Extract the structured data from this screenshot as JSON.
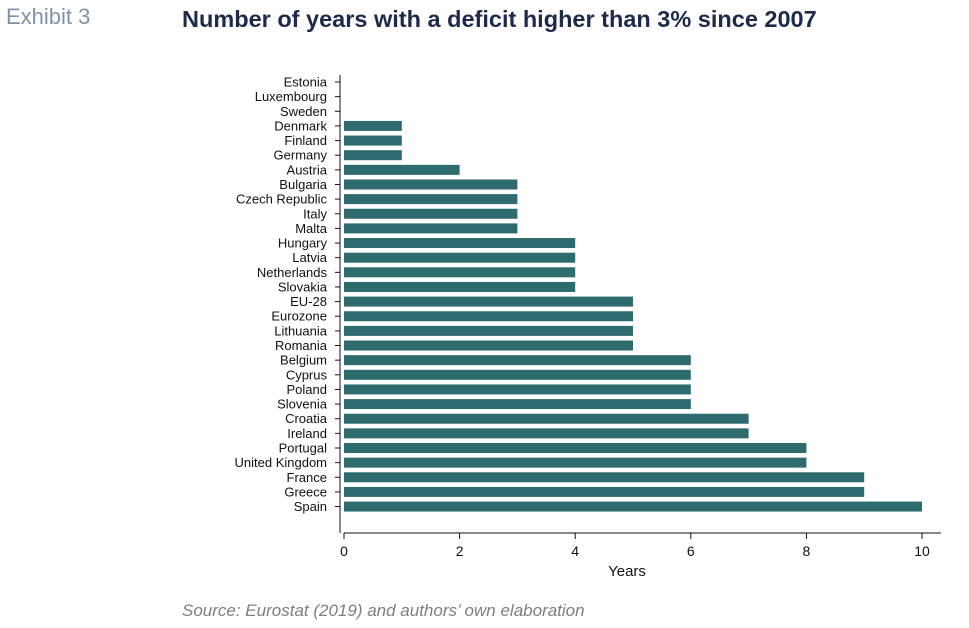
{
  "header": {
    "exhibit": "Exhibit 3",
    "title": "Number of years with a deficit higher than 3% since 2007"
  },
  "footer": {
    "source": "Source: Eurostat (2019) and authors’ own elaboration"
  },
  "colors": {
    "bar": "#2e6b6e",
    "axis": "#111111"
  },
  "chart_data": {
    "type": "bar",
    "orientation": "horizontal",
    "title": "Number of years with a deficit higher than 3% since 2007",
    "xlabel": "Years",
    "ylabel": "",
    "xlim": [
      0,
      10
    ],
    "xticks": [
      0,
      2,
      4,
      6,
      8,
      10
    ],
    "grid": false,
    "categories": [
      "Estonia",
      "Luxembourg",
      "Sweden",
      "Denmark",
      "Finland",
      "Germany",
      "Austria",
      "Bulgaria",
      "Czech Republic",
      "Italy",
      "Malta",
      "Hungary",
      "Latvia",
      "Netherlands",
      "Slovakia",
      "EU-28",
      "Eurozone",
      "Lithuania",
      "Romania",
      "Belgium",
      "Cyprus",
      "Poland",
      "Slovenia",
      "Croatia",
      "Ireland",
      "Portugal",
      "United Kingdom",
      "France",
      "Greece",
      "Spain"
    ],
    "values": [
      0,
      0,
      0,
      1,
      1,
      1,
      2,
      3,
      3,
      3,
      3,
      4,
      4,
      4,
      4,
      5,
      5,
      5,
      5,
      6,
      6,
      6,
      6,
      7,
      7,
      8,
      8,
      9,
      9,
      10
    ]
  }
}
